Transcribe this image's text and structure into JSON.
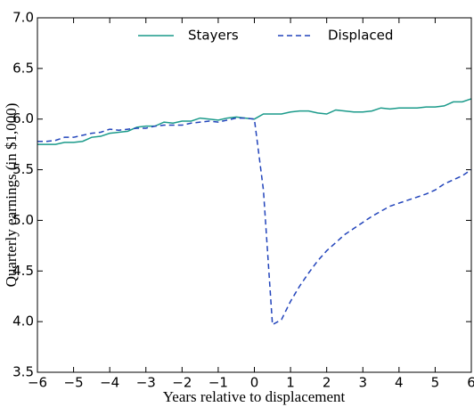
{
  "chart_data": {
    "type": "line",
    "xlabel": "Years relative to displacement",
    "ylabel": "Quarterly earnings (in $1,000)",
    "x": [
      -6,
      -5.75,
      -5.5,
      -5.25,
      -5,
      -4.75,
      -4.5,
      -4.25,
      -4,
      -3.75,
      -3.5,
      -3.25,
      -3,
      -2.75,
      -2.5,
      -2.25,
      -2,
      -1.75,
      -1.5,
      -1.25,
      -1,
      -0.75,
      -0.5,
      -0.25,
      0,
      0.25,
      0.5,
      0.75,
      1,
      1.25,
      1.5,
      1.75,
      2,
      2.25,
      2.5,
      2.75,
      3,
      3.25,
      3.5,
      3.75,
      4,
      4.25,
      4.5,
      4.75,
      5,
      5.25,
      5.5,
      5.75,
      6
    ],
    "series": [
      {
        "name": "Stayers",
        "color": "#1a9a8a",
        "dash": "solid",
        "values": [
          5.75,
          5.75,
          5.75,
          5.77,
          5.77,
          5.78,
          5.82,
          5.83,
          5.86,
          5.87,
          5.88,
          5.92,
          5.93,
          5.93,
          5.97,
          5.96,
          5.98,
          5.98,
          6.01,
          6.0,
          5.99,
          6.01,
          6.02,
          6.01,
          6.0,
          6.05,
          6.05,
          6.05,
          6.07,
          6.08,
          6.08,
          6.06,
          6.05,
          6.09,
          6.08,
          6.07,
          6.07,
          6.08,
          6.11,
          6.1,
          6.11,
          6.11,
          6.11,
          6.12,
          6.12,
          6.13,
          6.17,
          6.17,
          6.2
        ]
      },
      {
        "name": "Displaced",
        "color": "#2244bb",
        "dash": "dashed",
        "values": [
          5.78,
          5.78,
          5.79,
          5.82,
          5.82,
          5.84,
          5.86,
          5.87,
          5.9,
          5.89,
          5.9,
          5.91,
          5.91,
          5.93,
          5.94,
          5.94,
          5.94,
          5.96,
          5.97,
          5.98,
          5.97,
          5.99,
          6.01,
          6.01,
          6.0,
          5.3,
          3.97,
          4.02,
          4.2,
          4.35,
          4.48,
          4.6,
          4.7,
          4.78,
          4.86,
          4.92,
          4.98,
          5.04,
          5.09,
          5.14,
          5.17,
          5.2,
          5.23,
          5.26,
          5.3,
          5.36,
          5.4,
          5.44,
          5.5
        ]
      }
    ],
    "xlim": [
      -6,
      6
    ],
    "xticks": [
      {
        "value": -6,
        "label": "−6"
      },
      {
        "value": -5,
        "label": "−5"
      },
      {
        "value": -4,
        "label": "−4"
      },
      {
        "value": -3,
        "label": "−3"
      },
      {
        "value": -2,
        "label": "−2"
      },
      {
        "value": -1,
        "label": "−1"
      },
      0,
      1,
      2,
      3,
      4,
      5,
      6
    ],
    "ylim": [
      3.5,
      7.0
    ],
    "yticks": [
      3.5,
      {
        "value": 4,
        "label": "4.0"
      },
      4.5,
      {
        "value": 5,
        "label": "5.0"
      },
      5.5,
      {
        "value": 6,
        "label": "6.0"
      },
      6.5,
      {
        "value": 7,
        "label": "7.0"
      }
    ],
    "legend": "top"
  }
}
